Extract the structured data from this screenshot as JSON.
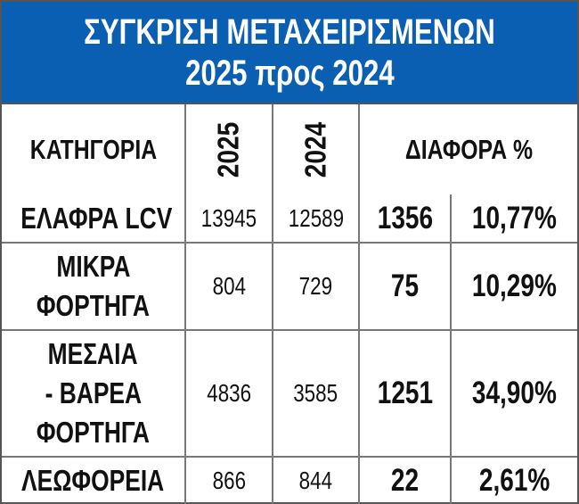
{
  "title": {
    "line1": "ΣΥΓΚΡΙΣΗ ΜΕΤΑΧΕΙΡΙΣΜΕΝΩΝ",
    "line2": "2025 προς 2024"
  },
  "colors": {
    "header_bg": "#0b5fb3",
    "header_text": "#ffffff",
    "grid": "#777777"
  },
  "table": {
    "headers": {
      "category": "ΚΑΤΗΓΟΡΙΑ",
      "y2025": "2025",
      "y2024": "2024",
      "diff": "ΔΙΑΦΟΡΑ %"
    },
    "rows": [
      {
        "category": [
          "ΕΛΑΦΡΑ LCV"
        ],
        "y2025": "13945",
        "y2024": "12589",
        "diff": "1356",
        "pct": "10,77%"
      },
      {
        "category": [
          "ΜΙΚΡΑ",
          "ΦΟΡΤΗΓΑ"
        ],
        "y2025": "804",
        "y2024": "729",
        "diff": "75",
        "pct": "10,29%"
      },
      {
        "category": [
          "ΜΕΣΑΙΑ",
          "- ΒΑΡΕΑ",
          "ΦΟΡΤΗΓΑ"
        ],
        "y2025": "4836",
        "y2024": "3585",
        "diff": "1251",
        "pct": "34,90%"
      },
      {
        "category": [
          "ΛΕΩΦΟΡΕΙΑ"
        ],
        "y2025": "866",
        "y2024": "844",
        "diff": "22",
        "pct": "2,61%"
      }
    ]
  }
}
